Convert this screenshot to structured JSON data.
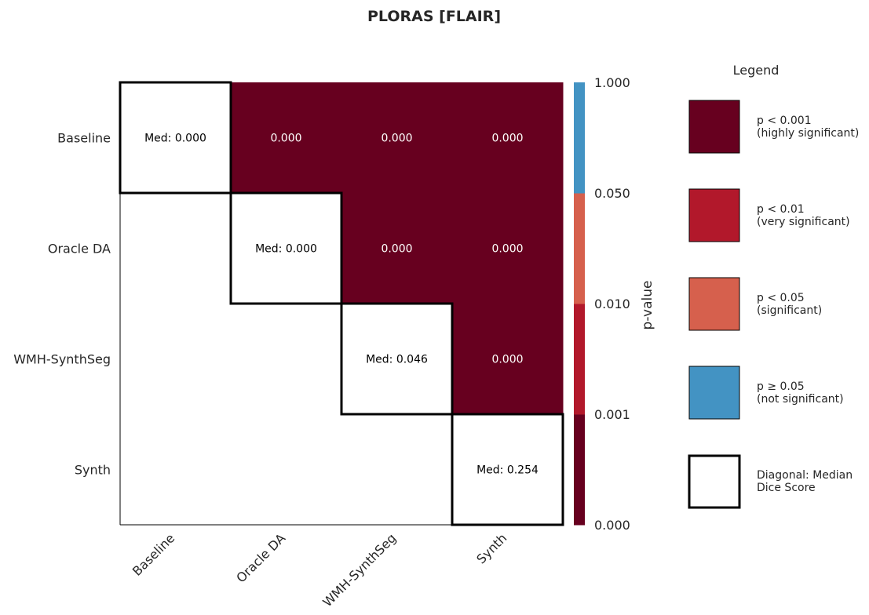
{
  "chart_data": {
    "type": "heatmap",
    "title": "PLORAS [FLAIR]",
    "row_labels": [
      "Baseline",
      "Oracle DA",
      "WMH-SynthSeg",
      "Synth"
    ],
    "col_labels": [
      "Baseline",
      "Oracle DA",
      "WMH-SynthSeg",
      "Synth"
    ],
    "pvalues_upper": [
      [
        null,
        0.0,
        0.0,
        0.0
      ],
      [
        null,
        null,
        0.0,
        0.0
      ],
      [
        null,
        null,
        null,
        0.0
      ],
      [
        null,
        null,
        null,
        null
      ]
    ],
    "cell_text_upper": [
      [
        "",
        "0.000",
        "0.000",
        "0.000"
      ],
      [
        "",
        "",
        "0.000",
        "0.000"
      ],
      [
        "",
        "",
        "",
        "0.000"
      ],
      [
        "",
        "",
        "",
        ""
      ]
    ],
    "diagonal_median_dice": [
      0.0,
      0.0,
      0.046,
      0.254
    ],
    "diagonal_text": [
      "Med: 0.000",
      "Med: 0.000",
      "Med: 0.046",
      "Med: 0.254"
    ],
    "colorbar": {
      "label": "p-value",
      "ticks": [
        "0.000",
        "0.001",
        "0.010",
        "0.050",
        "1.000"
      ],
      "bins": [
        {
          "from": 0.0,
          "to": 0.001,
          "color": "#67001f"
        },
        {
          "from": 0.001,
          "to": 0.01,
          "color": "#b2182b"
        },
        {
          "from": 0.01,
          "to": 0.05,
          "color": "#d6604d"
        },
        {
          "from": 0.05,
          "to": 1.0,
          "color": "#4393c3"
        }
      ]
    },
    "legend": {
      "title": "Legend",
      "placement": "right",
      "entries": [
        {
          "text": [
            "p < 0.001",
            "(highly significant)"
          ],
          "color": "#67001f",
          "style": "fill"
        },
        {
          "text": [
            "p < 0.01",
            "(very significant)"
          ],
          "color": "#b2182b",
          "style": "fill"
        },
        {
          "text": [
            "p < 0.05",
            "(significant)"
          ],
          "color": "#d6604d",
          "style": "fill"
        },
        {
          "text": [
            "p ≥ 0.05",
            "(not significant)"
          ],
          "color": "#4393c3",
          "style": "fill"
        },
        {
          "text": [
            "Diagonal: Median",
            "Dice Score"
          ],
          "color": "#ffffff",
          "style": "outline"
        }
      ]
    },
    "lower_triangle_color": "#ffffff"
  }
}
